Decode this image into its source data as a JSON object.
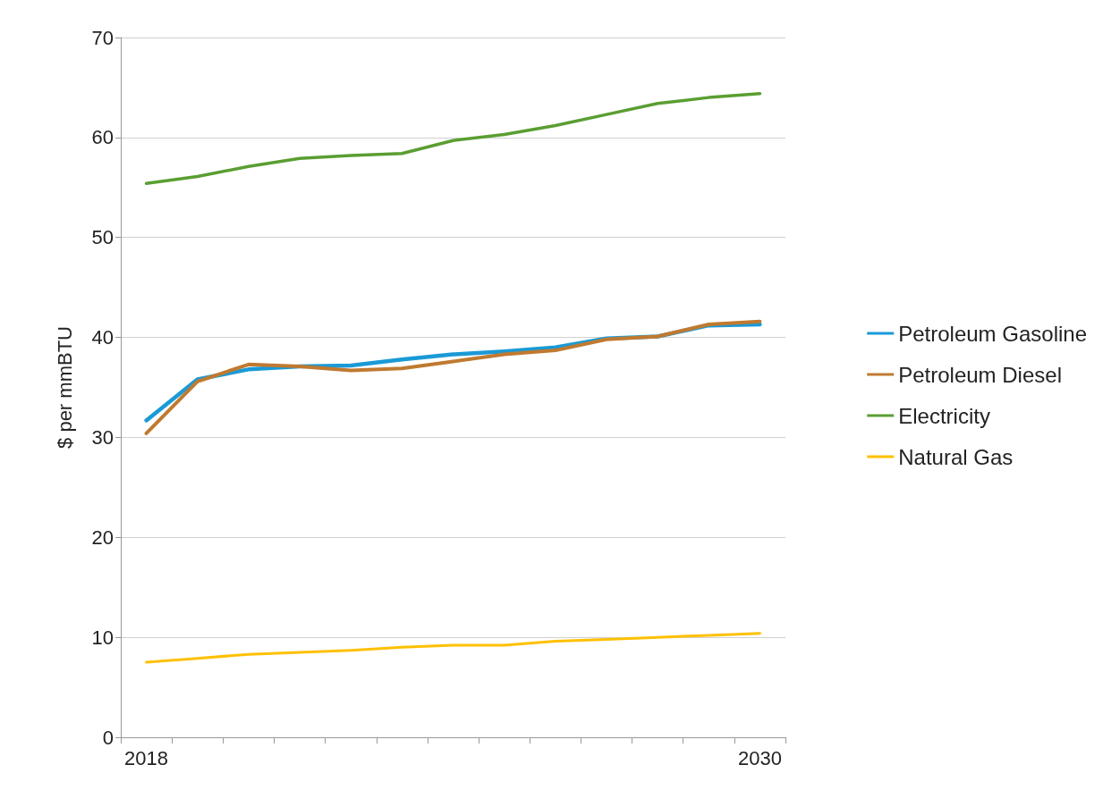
{
  "chart_data": {
    "type": "line",
    "ylabel": "$ per mmBTU",
    "categories": [
      "2018",
      null,
      null,
      null,
      null,
      null,
      null,
      null,
      null,
      null,
      null,
      null,
      "2030"
    ],
    "series": [
      {
        "name": "Petroleum Gasoline",
        "color": "#1a9ad6",
        "values": [
          31.7,
          35.8,
          36.8,
          37.1,
          37.2,
          37.8,
          38.3,
          38.6,
          39.0,
          39.9,
          40.1,
          41.2,
          41.3
        ]
      },
      {
        "name": "Petroleum Diesel",
        "color": "#c07a30",
        "values": [
          30.4,
          35.6,
          37.3,
          37.1,
          36.7,
          36.9,
          37.6,
          38.3,
          38.7,
          39.8,
          40.1,
          41.3,
          41.6
        ]
      },
      {
        "name": "Electricity",
        "color": "#5a9e32",
        "values": [
          55.4,
          56.1,
          57.1,
          57.9,
          58.2,
          58.4,
          59.7,
          60.3,
          61.2,
          62.3,
          63.4,
          64.0,
          64.4
        ]
      },
      {
        "name": "Natural Gas",
        "color": "#ffc000",
        "values": [
          7.5,
          7.9,
          8.3,
          8.5,
          8.7,
          9.0,
          9.2,
          9.2,
          9.6,
          9.8,
          10.0,
          10.2,
          10.4
        ]
      }
    ],
    "ylim": [
      0,
      70
    ],
    "yticks": [
      0,
      10,
      20,
      30,
      40,
      50,
      60,
      70
    ],
    "grid": "y",
    "legend": "right",
    "marker": "none",
    "line_style": "solid"
  }
}
